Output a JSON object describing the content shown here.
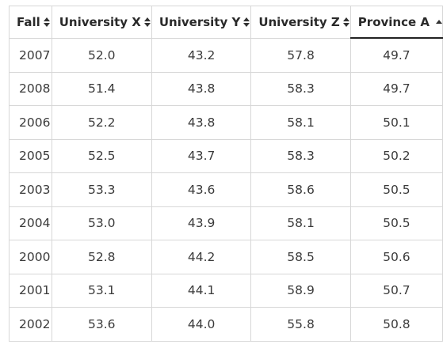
{
  "table": {
    "columns": [
      {
        "label": "Fall",
        "sort": "both"
      },
      {
        "label": "University X",
        "sort": "both"
      },
      {
        "label": "University Y",
        "sort": "both"
      },
      {
        "label": "University Z",
        "sort": "both"
      },
      {
        "label": "Province A",
        "sort": "asc"
      }
    ],
    "rows": [
      [
        "2007",
        "52.0",
        "43.2",
        "57.8",
        "49.7"
      ],
      [
        "2008",
        "51.4",
        "43.8",
        "58.3",
        "49.7"
      ],
      [
        "2006",
        "52.2",
        "43.8",
        "58.1",
        "50.1"
      ],
      [
        "2005",
        "52.5",
        "43.7",
        "58.3",
        "50.2"
      ],
      [
        "2003",
        "53.3",
        "43.6",
        "58.6",
        "50.5"
      ],
      [
        "2004",
        "53.0",
        "43.9",
        "58.1",
        "50.5"
      ],
      [
        "2000",
        "52.8",
        "44.2",
        "58.5",
        "50.6"
      ],
      [
        "2001",
        "53.1",
        "44.1",
        "58.9",
        "50.7"
      ],
      [
        "2002",
        "53.6",
        "44.0",
        "55.8",
        "50.8"
      ]
    ]
  }
}
